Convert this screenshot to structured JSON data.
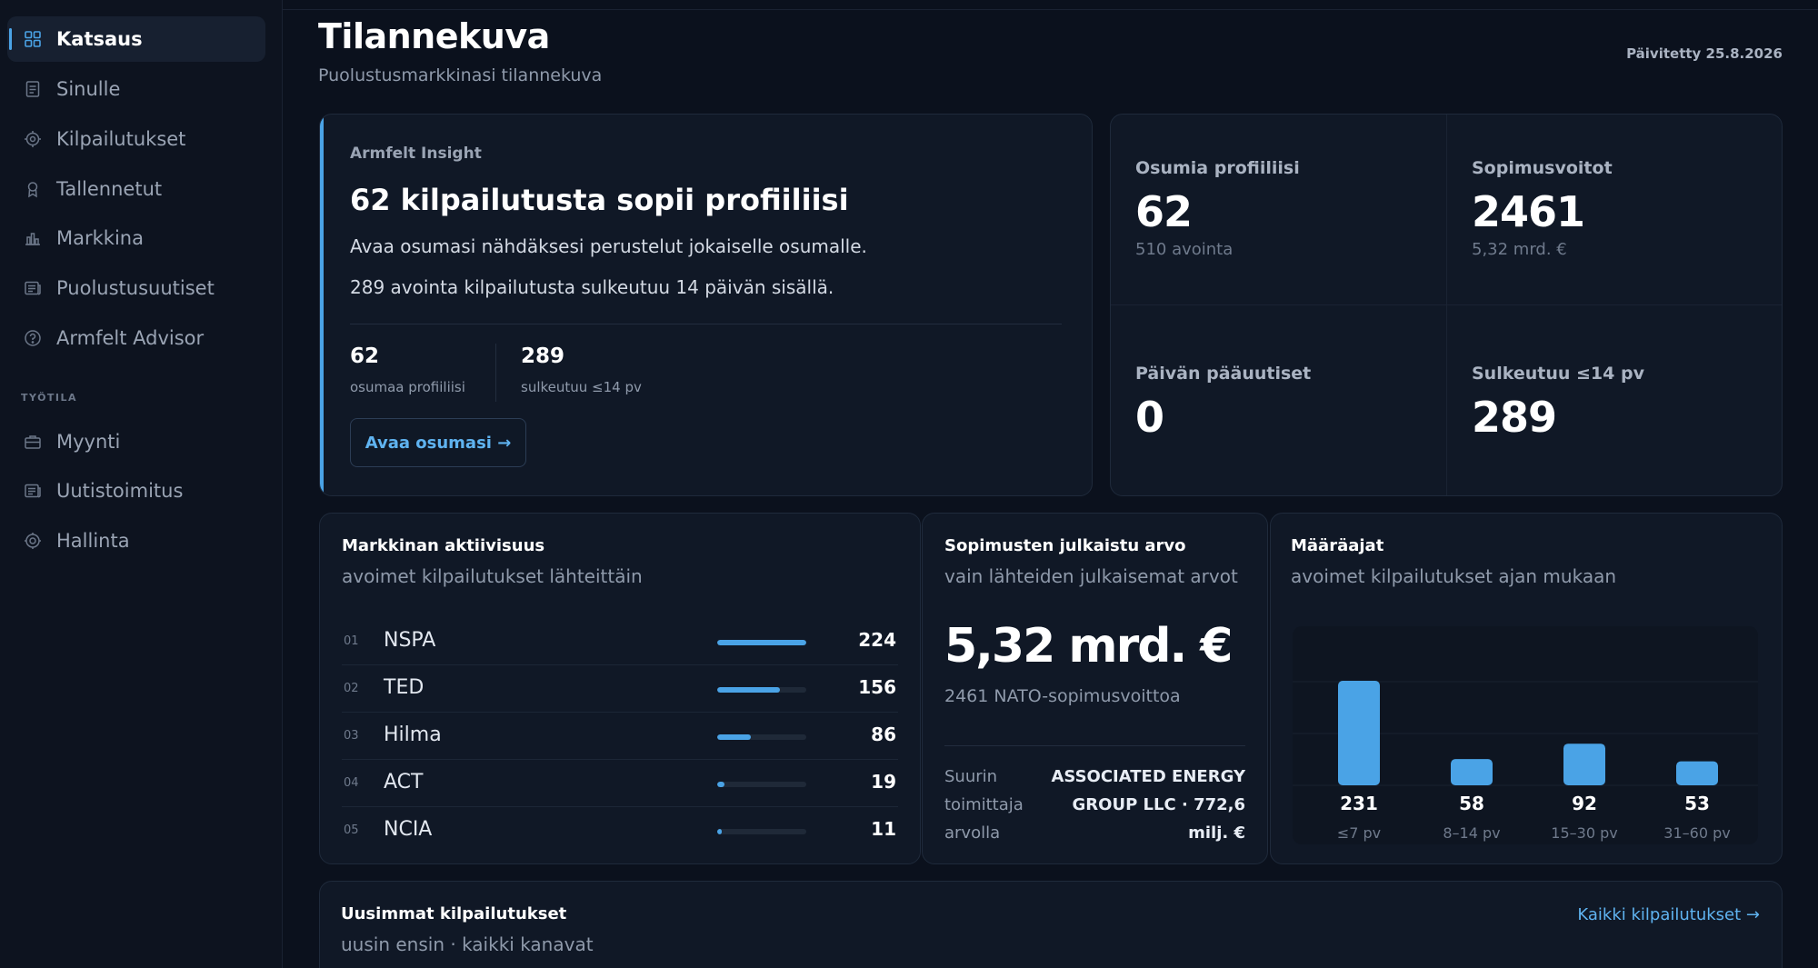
{
  "sidebar": {
    "items": [
      {
        "label": "Katsaus",
        "icon": "grid-icon",
        "active": true
      },
      {
        "label": "Sinulle",
        "icon": "document-icon"
      },
      {
        "label": "Kilpailutukset",
        "icon": "target-icon"
      },
      {
        "label": "Tallennetut",
        "icon": "bookmark-icon"
      },
      {
        "label": "Markkina",
        "icon": "bar-chart-icon"
      },
      {
        "label": "Puolustusuutiset",
        "icon": "newspaper-icon"
      },
      {
        "label": "Armfelt Advisor",
        "icon": "help-circle-icon"
      }
    ],
    "section_label": "TYÖTILA",
    "workspace_items": [
      {
        "label": "Myynti",
        "icon": "briefcase-icon"
      },
      {
        "label": "Uutistoimitus",
        "icon": "newspaper-icon"
      },
      {
        "label": "Hallinta",
        "icon": "settings-icon"
      }
    ]
  },
  "header": {
    "title": "Tilannekuva",
    "subtitle": "Puolustusmarkkinasi tilannekuva",
    "updated": "Päivitetty 25.8.2026"
  },
  "insight": {
    "eyebrow": "Armfelt Insight",
    "title": "62 kilpailutusta sopii profiiliisi",
    "text1": "Avaa osumasi nähdäksesi perustelut jokaiselle osumalle.",
    "text2": "289 avointa kilpailutusta sulkeutuu 14 päivän sisällä.",
    "stat1_value": "62",
    "stat1_label": "osumaa profiiliisi",
    "stat2_value": "289",
    "stat2_label": "sulkeutuu ≤14 pv",
    "button": "Avaa osumasi →"
  },
  "stats": {
    "matches_label": "Osumia profiiliisi",
    "matches_value": "62",
    "matches_sub": "510 avointa",
    "wins_label": "Sopimusvoitot",
    "wins_value": "2461",
    "wins_sub": "5,32 mrd. €",
    "news_label": "Päivän pääuutiset",
    "news_value": "0",
    "closing_label": "Sulkeutuu ≤14 pv",
    "closing_value": "289"
  },
  "activity": {
    "title": "Markkinan aktiivisuus",
    "subtitle": "avoimet kilpailutukset lähteittäin",
    "rows": [
      {
        "num": "01",
        "name": "NSPA",
        "value": "224",
        "fraction": 1.0
      },
      {
        "num": "02",
        "name": "TED",
        "value": "156",
        "fraction": 0.7
      },
      {
        "num": "03",
        "name": "Hilma",
        "value": "86",
        "fraction": 0.38
      },
      {
        "num": "04",
        "name": "ACT",
        "value": "19",
        "fraction": 0.085
      },
      {
        "num": "05",
        "name": "NCIA",
        "value": "11",
        "fraction": 0.05
      }
    ]
  },
  "contract_value": {
    "title": "Sopimusten julkaistu arvo",
    "subtitle": "vain lähteiden julkaisemat arvot",
    "big_value": "5,32 mrd. €",
    "sub": "2461 NATO-sopimusvoittoa",
    "supplier_label": "Suurin toimittaja arvolla",
    "supplier_value": "ASSOCIATED ENERGY GROUP LLC · 772,6 milj. €"
  },
  "deadlines": {
    "title": "Määräajat",
    "subtitle": "avoimet kilpailutukset ajan mukaan"
  },
  "latest": {
    "title": "Uusimmat kilpailutukset",
    "subtitle": "uusin ensin · kaikki kanavat",
    "link": "Kaikki kilpailutukset →"
  },
  "chart_data": {
    "type": "bar",
    "categories": [
      "≤7 pv",
      "8–14 pv",
      "15–30 pv",
      "31–60 pv"
    ],
    "values": [
      231,
      58,
      92,
      53
    ],
    "title": "Määräajat",
    "subtitle": "avoimet kilpailutukset ajan mukaan",
    "bar_color": "#4aa3e6",
    "grid": true
  },
  "colors": {
    "accent": "#4aa3e6",
    "background": "#0b111d",
    "card": "#101826"
  }
}
